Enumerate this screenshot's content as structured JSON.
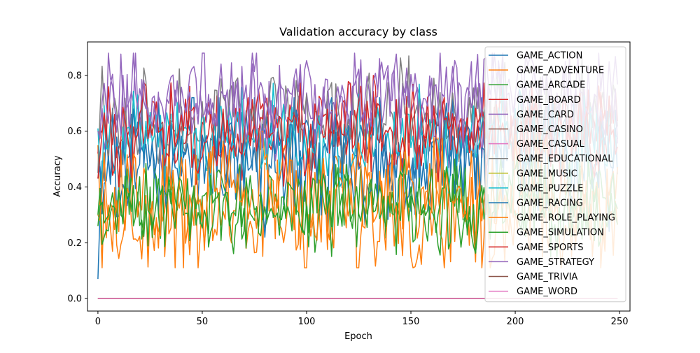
{
  "chart_data": {
    "type": "line",
    "title": "Validation accuracy by class",
    "xlabel": "Epoch",
    "ylabel": "Accuracy",
    "xlim": [
      -5,
      255
    ],
    "ylim": [
      -0.045,
      0.92
    ],
    "xticks": [
      "0",
      "50",
      "100",
      "150",
      "200",
      "250"
    ],
    "xtick_values": [
      0,
      50,
      100,
      150,
      200,
      250
    ],
    "yticks": [
      "0.0",
      "0.2",
      "0.4",
      "0.6",
      "0.8"
    ],
    "ytick_values": [
      0.0,
      0.2,
      0.4,
      0.6,
      0.8
    ],
    "epochs": 250,
    "grid": false,
    "legend_position": "top-right",
    "series": [
      {
        "name": "GAME_ACTION",
        "color": "#1f77b4",
        "start": 0.07,
        "mean": 0.52,
        "spread": 0.09,
        "min": 0.2,
        "max": 0.72
      },
      {
        "name": "GAME_ADVENTURE",
        "color": "#ff7f0e",
        "start": 0.55,
        "mean": 0.31,
        "spread": 0.09,
        "min": 0.11,
        "max": 0.62
      },
      {
        "name": "GAME_ARCADE",
        "color": "#2ca02c",
        "start": 0.3,
        "mean": 0.33,
        "spread": 0.06,
        "min": 0.15,
        "max": 0.48
      },
      {
        "name": "GAME_BOARD",
        "color": "#d62728",
        "start": 0.52,
        "mean": 0.6,
        "spread": 0.06,
        "min": 0.33,
        "max": 0.82
      },
      {
        "name": "GAME_CARD",
        "color": "#9467bd",
        "start": 0.6,
        "mean": 0.69,
        "spread": 0.08,
        "min": 0.38,
        "max": 0.88
      },
      {
        "name": "GAME_CASINO",
        "color": "#8c564b",
        "start": 0.0,
        "mean": 0.0,
        "spread": 0.0,
        "min": 0.0,
        "max": 0.0
      },
      {
        "name": "GAME_CASUAL",
        "color": "#e377c2",
        "start": 0.0,
        "mean": 0.0,
        "spread": 0.0,
        "min": 0.0,
        "max": 0.0
      },
      {
        "name": "GAME_EDUCATIONAL",
        "color": "#7f7f7f",
        "start": 0.45,
        "mean": 0.65,
        "spread": 0.07,
        "min": 0.35,
        "max": 0.87
      },
      {
        "name": "GAME_MUSIC",
        "color": "#bcbd22",
        "start": 0.0,
        "mean": 0.0,
        "spread": 0.0,
        "min": 0.0,
        "max": 0.0
      },
      {
        "name": "GAME_PUZZLE",
        "color": "#17becf",
        "start": 0.61,
        "mean": 0.58,
        "spread": 0.07,
        "min": 0.36,
        "max": 0.78
      },
      {
        "name": "GAME_RACING",
        "color": "#1f77b4",
        "start": 0.43,
        "mean": 0.5,
        "spread": 0.08,
        "min": 0.22,
        "max": 0.72
      },
      {
        "name": "GAME_ROLE_PLAYING",
        "color": "#ff7f0e",
        "start": 0.3,
        "mean": 0.4,
        "spread": 0.08,
        "min": 0.15,
        "max": 0.6
      },
      {
        "name": "GAME_SIMULATION",
        "color": "#2ca02c",
        "start": 0.26,
        "mean": 0.34,
        "spread": 0.06,
        "min": 0.15,
        "max": 0.5
      },
      {
        "name": "GAME_SPORTS",
        "color": "#d62728",
        "start": 0.43,
        "mean": 0.6,
        "spread": 0.06,
        "min": 0.4,
        "max": 0.8
      },
      {
        "name": "GAME_STRATEGY",
        "color": "#9467bd",
        "start": 0.6,
        "mean": 0.72,
        "spread": 0.06,
        "min": 0.5,
        "max": 0.88
      },
      {
        "name": "GAME_TRIVIA",
        "color": "#8c564b",
        "start": 0.0,
        "mean": 0.0,
        "spread": 0.0,
        "min": 0.0,
        "max": 0.0
      },
      {
        "name": "GAME_WORD",
        "color": "#e377c2",
        "start": 0.0,
        "mean": 0.0,
        "spread": 0.0,
        "min": 0.0,
        "max": 0.0
      }
    ]
  }
}
